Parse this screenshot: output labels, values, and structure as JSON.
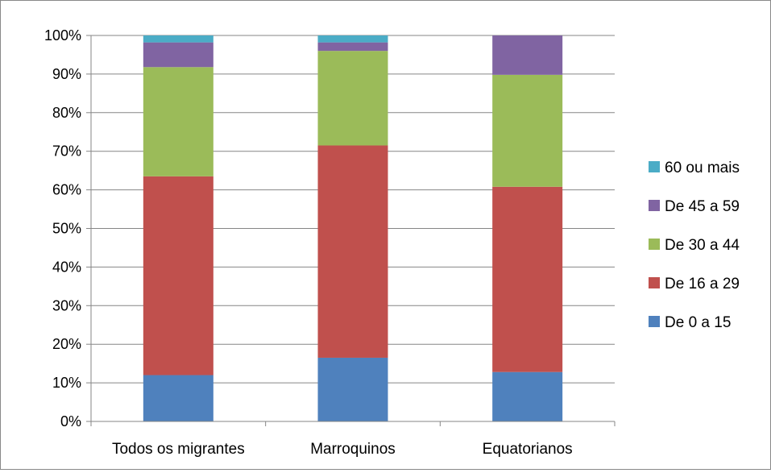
{
  "chart_data": {
    "type": "bar",
    "stacked": true,
    "percent": true,
    "categories": [
      "Todos os migrantes",
      "Marroquinos",
      "Equatorianos"
    ],
    "y_ticks": [
      "0%",
      "10%",
      "20%",
      "30%",
      "40%",
      "50%",
      "60%",
      "70%",
      "80%",
      "90%",
      "100%"
    ],
    "ylim": [
      0,
      100
    ],
    "grid": "horizontal",
    "legend_position": "right",
    "series": [
      {
        "name": "De 0 a 15",
        "color": "#4F81BD",
        "values": [
          12.0,
          16.5,
          12.8
        ]
      },
      {
        "name": "De 16 a 29",
        "color": "#C0504D",
        "values": [
          51.5,
          55.0,
          48.0
        ]
      },
      {
        "name": "De 30 a 44",
        "color": "#9BBB59",
        "values": [
          28.3,
          24.5,
          29.0
        ]
      },
      {
        "name": "De 45 a 59",
        "color": "#8064A2",
        "values": [
          6.4,
          2.2,
          10.2
        ]
      },
      {
        "name": "60 ou mais",
        "color": "#4BACC6",
        "values": [
          1.8,
          1.8,
          0.0
        ]
      }
    ]
  }
}
